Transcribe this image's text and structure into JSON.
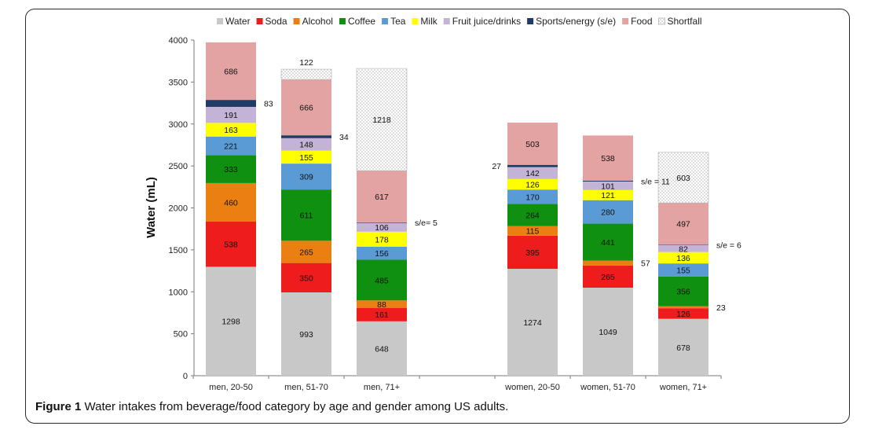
{
  "caption": {
    "label": "Figure 1",
    "text": "Water intakes from beverage/food category by age and gender among US adults."
  },
  "chart_data": {
    "type": "bar",
    "stacked": true,
    "title": "",
    "xlabel": "",
    "ylabel": "Water (mL)",
    "ylim": [
      0,
      4000
    ],
    "yticks": [
      0,
      500,
      1000,
      1500,
      2000,
      2500,
      3000,
      3500,
      4000
    ],
    "grid": false,
    "legend_position": "top",
    "categories": [
      "men, 20-50",
      "men, 51-70",
      "men, 71+",
      "women, 20-50",
      "women, 51-70",
      "women, 71+"
    ],
    "series": [
      {
        "name": "Water",
        "color": "#c8c8c8",
        "values": [
          1298,
          993,
          648,
          1274,
          1049,
          678
        ]
      },
      {
        "name": "Soda",
        "color": "#ee1c1c",
        "values": [
          538,
          350,
          161,
          395,
          265,
          126
        ]
      },
      {
        "name": "Alcohol",
        "color": "#ec7f12",
        "values": [
          460,
          265,
          88,
          115,
          57,
          23
        ]
      },
      {
        "name": "Coffee",
        "color": "#109010",
        "values": [
          333,
          611,
          485,
          264,
          441,
          356
        ]
      },
      {
        "name": "Tea",
        "color": "#5b9bd5",
        "values": [
          221,
          309,
          156,
          170,
          280,
          155
        ]
      },
      {
        "name": "Milk",
        "color": "#ffff00",
        "values": [
          163,
          155,
          178,
          126,
          121,
          136
        ]
      },
      {
        "name": "Fruit juice/drinks",
        "color": "#c3b3d6",
        "values": [
          191,
          148,
          106,
          142,
          101,
          82
        ]
      },
      {
        "name": "Sports/energy (s/e)",
        "color": "#1f3d64",
        "values": [
          83,
          34,
          5,
          27,
          11,
          6
        ]
      },
      {
        "name": "Food",
        "color": "#e3a3a3",
        "values": [
          686,
          666,
          617,
          503,
          538,
          497
        ]
      },
      {
        "name": "Shortfall",
        "color": "#ffffff",
        "pattern": "dotted",
        "values": [
          0,
          122,
          1218,
          0,
          0,
          603
        ]
      }
    ],
    "annotations": [
      {
        "category": "men, 20-50",
        "series": "Sports/energy (s/e)",
        "text": "83",
        "side": "right"
      },
      {
        "category": "men, 51-70",
        "series": "Shortfall",
        "text": "122",
        "side": "top"
      },
      {
        "category": "men, 51-70",
        "series": "Sports/energy (s/e)",
        "text": "34",
        "side": "right"
      },
      {
        "category": "men, 71+",
        "series": "Sports/energy (s/e)",
        "text": "s/e= 5",
        "side": "right"
      },
      {
        "category": "women, 20-50",
        "series": "Sports/energy (s/e)",
        "text": "27",
        "side": "left"
      },
      {
        "category": "women, 51-70",
        "series": "Sports/energy (s/e)",
        "text": "s/e = 11",
        "side": "right"
      },
      {
        "category": "women, 51-70",
        "series": "Alcohol",
        "text": "57",
        "side": "right"
      },
      {
        "category": "women, 71+",
        "series": "Sports/energy (s/e)",
        "text": "s/e = 6",
        "side": "right"
      },
      {
        "category": "women, 71+",
        "series": "Alcohol",
        "text": "23",
        "side": "right"
      }
    ]
  }
}
